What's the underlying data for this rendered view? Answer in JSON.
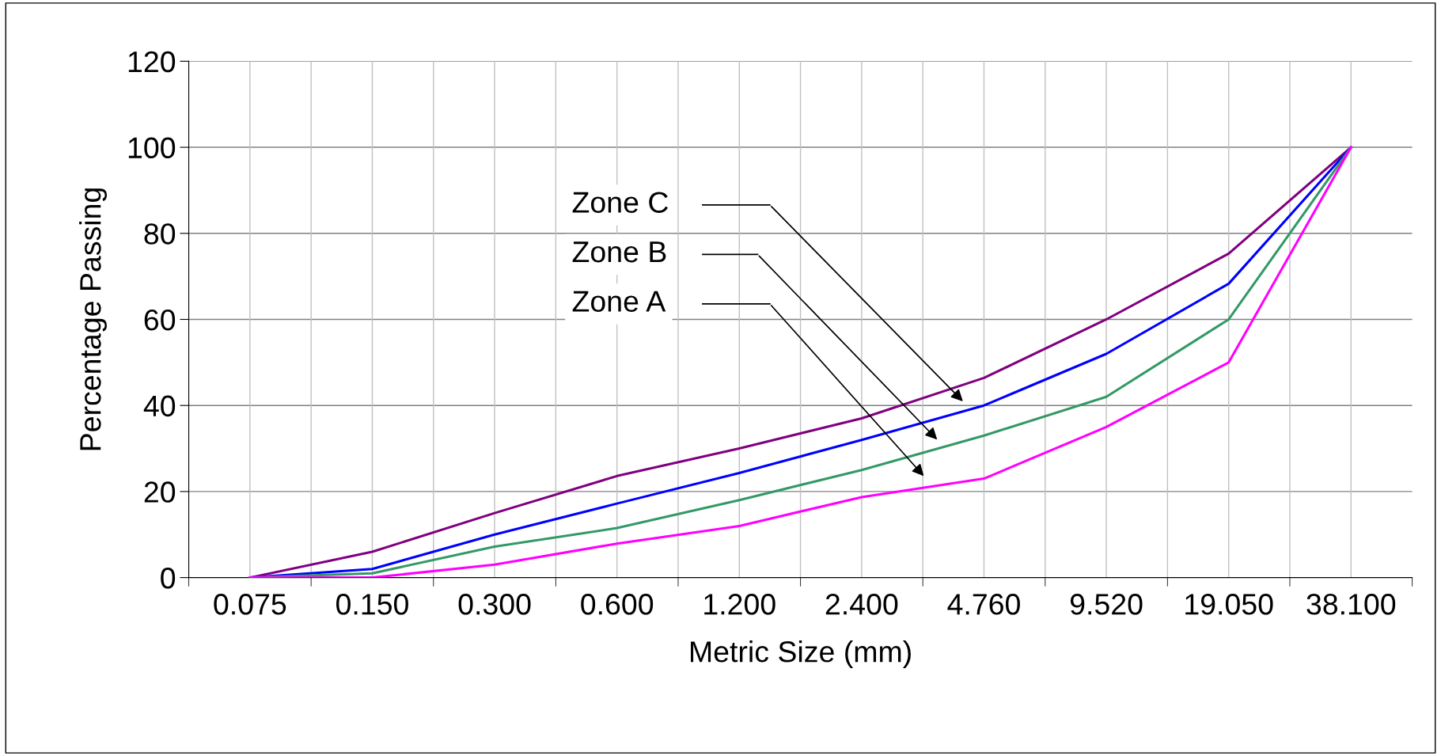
{
  "chart_data": {
    "type": "line",
    "xlabel": "Metric Size (mm)",
    "ylabel": "Percentage Passing",
    "categories": [
      "0.075",
      "0.150",
      "0.300",
      "0.600",
      "1.200",
      "2.400",
      "4.760",
      "9.520",
      "19.050",
      "38.100"
    ],
    "series": [
      {
        "color": "#800080",
        "values": [
          0,
          6,
          15,
          23.6,
          30,
          37,
          46.4,
          60,
          75.3,
          100
        ]
      },
      {
        "color": "#0000ff",
        "values": [
          0,
          2,
          10,
          17.2,
          24.3,
          32,
          40,
          52,
          68.3,
          100
        ]
      },
      {
        "color": "#339966",
        "values": [
          0,
          1,
          7.2,
          11.5,
          18,
          25,
          33,
          42,
          60,
          100
        ]
      },
      {
        "color": "#ff00ff",
        "values": [
          0,
          0,
          3,
          7.9,
          12,
          18.7,
          23,
          35,
          50,
          100
        ]
      }
    ],
    "annotations": [
      "Zone C",
      "Zone B",
      "Zone A"
    ],
    "ylim": [
      0,
      120
    ],
    "yticks": [
      0,
      20,
      40,
      60,
      80,
      100,
      120
    ],
    "grid": true,
    "marker": "none",
    "line_style": "solid",
    "legend": false
  }
}
